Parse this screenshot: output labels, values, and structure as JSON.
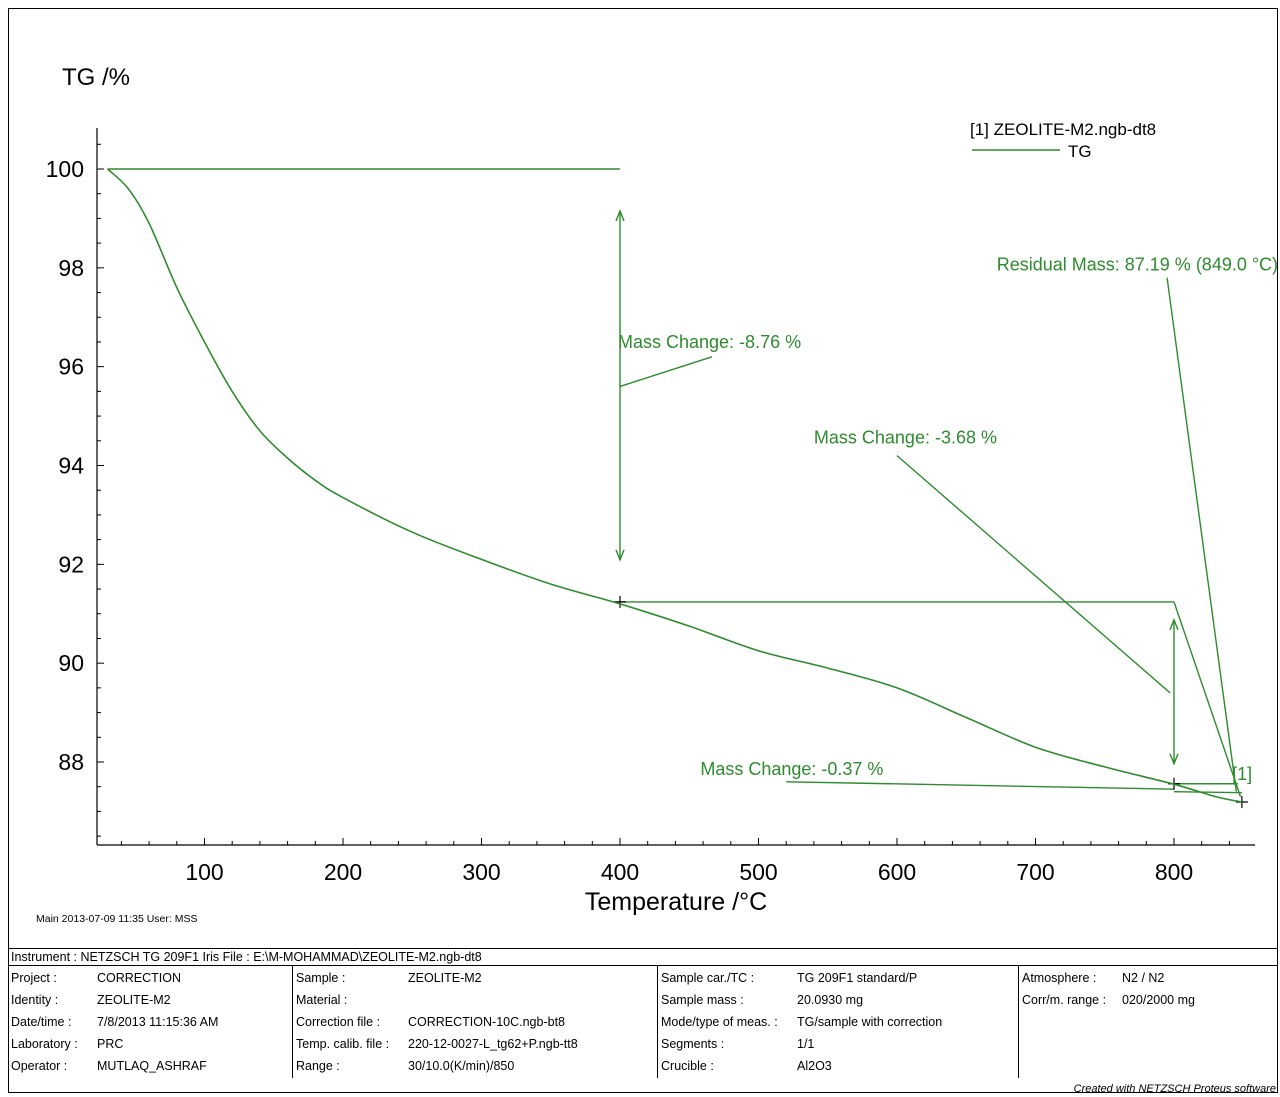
{
  "chart_data": {
    "type": "line",
    "ylabel": "TG /%",
    "xlabel": "Temperature /°C",
    "xlim": [
      30,
      850
    ],
    "ylim": [
      86.3,
      100.8
    ],
    "x_ticks": [
      100,
      200,
      300,
      400,
      500,
      600,
      700,
      800
    ],
    "y_ticks": [
      88,
      90,
      92,
      94,
      96,
      98,
      100
    ],
    "legend": {
      "file": "[1] ZEOLITE-M2.ngb-dt8",
      "series": "TG",
      "position": "top-right"
    },
    "series": [
      {
        "name": "TG",
        "color": "#2e8b2e",
        "x": [
          30,
          45,
          60,
          80,
          100,
          120,
          140,
          160,
          180,
          200,
          250,
          300,
          350,
          400,
          450,
          500,
          550,
          600,
          650,
          700,
          750,
          800,
          830,
          849
        ],
        "y": [
          100.0,
          99.6,
          98.9,
          97.6,
          96.5,
          95.5,
          94.7,
          94.15,
          93.7,
          93.35,
          92.65,
          92.1,
          91.6,
          91.2,
          90.75,
          90.25,
          89.9,
          89.5,
          88.9,
          88.3,
          87.9,
          87.55,
          87.3,
          87.19
        ]
      }
    ],
    "annotations": [
      {
        "label": "Mass Change: -8.76 %",
        "x1": 30,
        "x2": 400,
        "y1": 100.0,
        "y2": 91.24
      },
      {
        "label": "Mass Change: -3.68 %",
        "x1": 400,
        "x2": 800,
        "y1": 91.24,
        "y2": 87.56
      },
      {
        "label": "Mass Change: -0.37 %",
        "x1": 800,
        "x2": 849,
        "y1": 87.56,
        "y2": 87.19
      },
      {
        "label": "Residual Mass: 87.19 % (849.0 °C)",
        "x": 849,
        "y": 87.19
      }
    ],
    "marker_label": "[1]"
  },
  "footer": {
    "main_info": "Main   2013-07-09 11:35    User: MSS",
    "instrument_row": "Instrument :  NETZSCH TG 209F1 Iris   File :  E:\\M-MOHAMMAD\\ZEOLITE-M2.ngb-dt8",
    "col1": [
      {
        "k": "Project :",
        "v": "CORRECTION"
      },
      {
        "k": "Identity :",
        "v": "ZEOLITE-M2"
      },
      {
        "k": "Date/time :",
        "v": "7/8/2013 11:15:36 AM"
      },
      {
        "k": "Laboratory :",
        "v": "PRC"
      },
      {
        "k": "Operator :",
        "v": "MUTLAQ_ASHRAF"
      }
    ],
    "col2": [
      {
        "k": "Sample :",
        "v": "ZEOLITE-M2"
      },
      {
        "k": "Material :",
        "v": ""
      },
      {
        "k": "Correction file :",
        "v": "CORRECTION-10C.ngb-bt8"
      },
      {
        "k": "Temp. calib. file :",
        "v": "220-12-0027-L_tg62+P.ngb-tt8"
      },
      {
        "k": "Range :",
        "v": "30/10.0(K/min)/850"
      }
    ],
    "col3": [
      {
        "k": "Sample car./TC :",
        "v": "TG 209F1 standard/P"
      },
      {
        "k": "Sample mass :",
        "v": "20.0930 mg"
      },
      {
        "k": "Mode/type of meas. :",
        "v": "TG/sample with correction"
      },
      {
        "k": "Segments :",
        "v": "1/1"
      },
      {
        "k": "Crucible :",
        "v": "Al2O3"
      }
    ],
    "col4": [
      {
        "k": "Atmosphere :",
        "v": "N2 / N2"
      },
      {
        "k": "Corr/m. range :",
        "v": "020/2000 mg"
      }
    ],
    "credit": "Created with NETZSCH Proteus software"
  }
}
